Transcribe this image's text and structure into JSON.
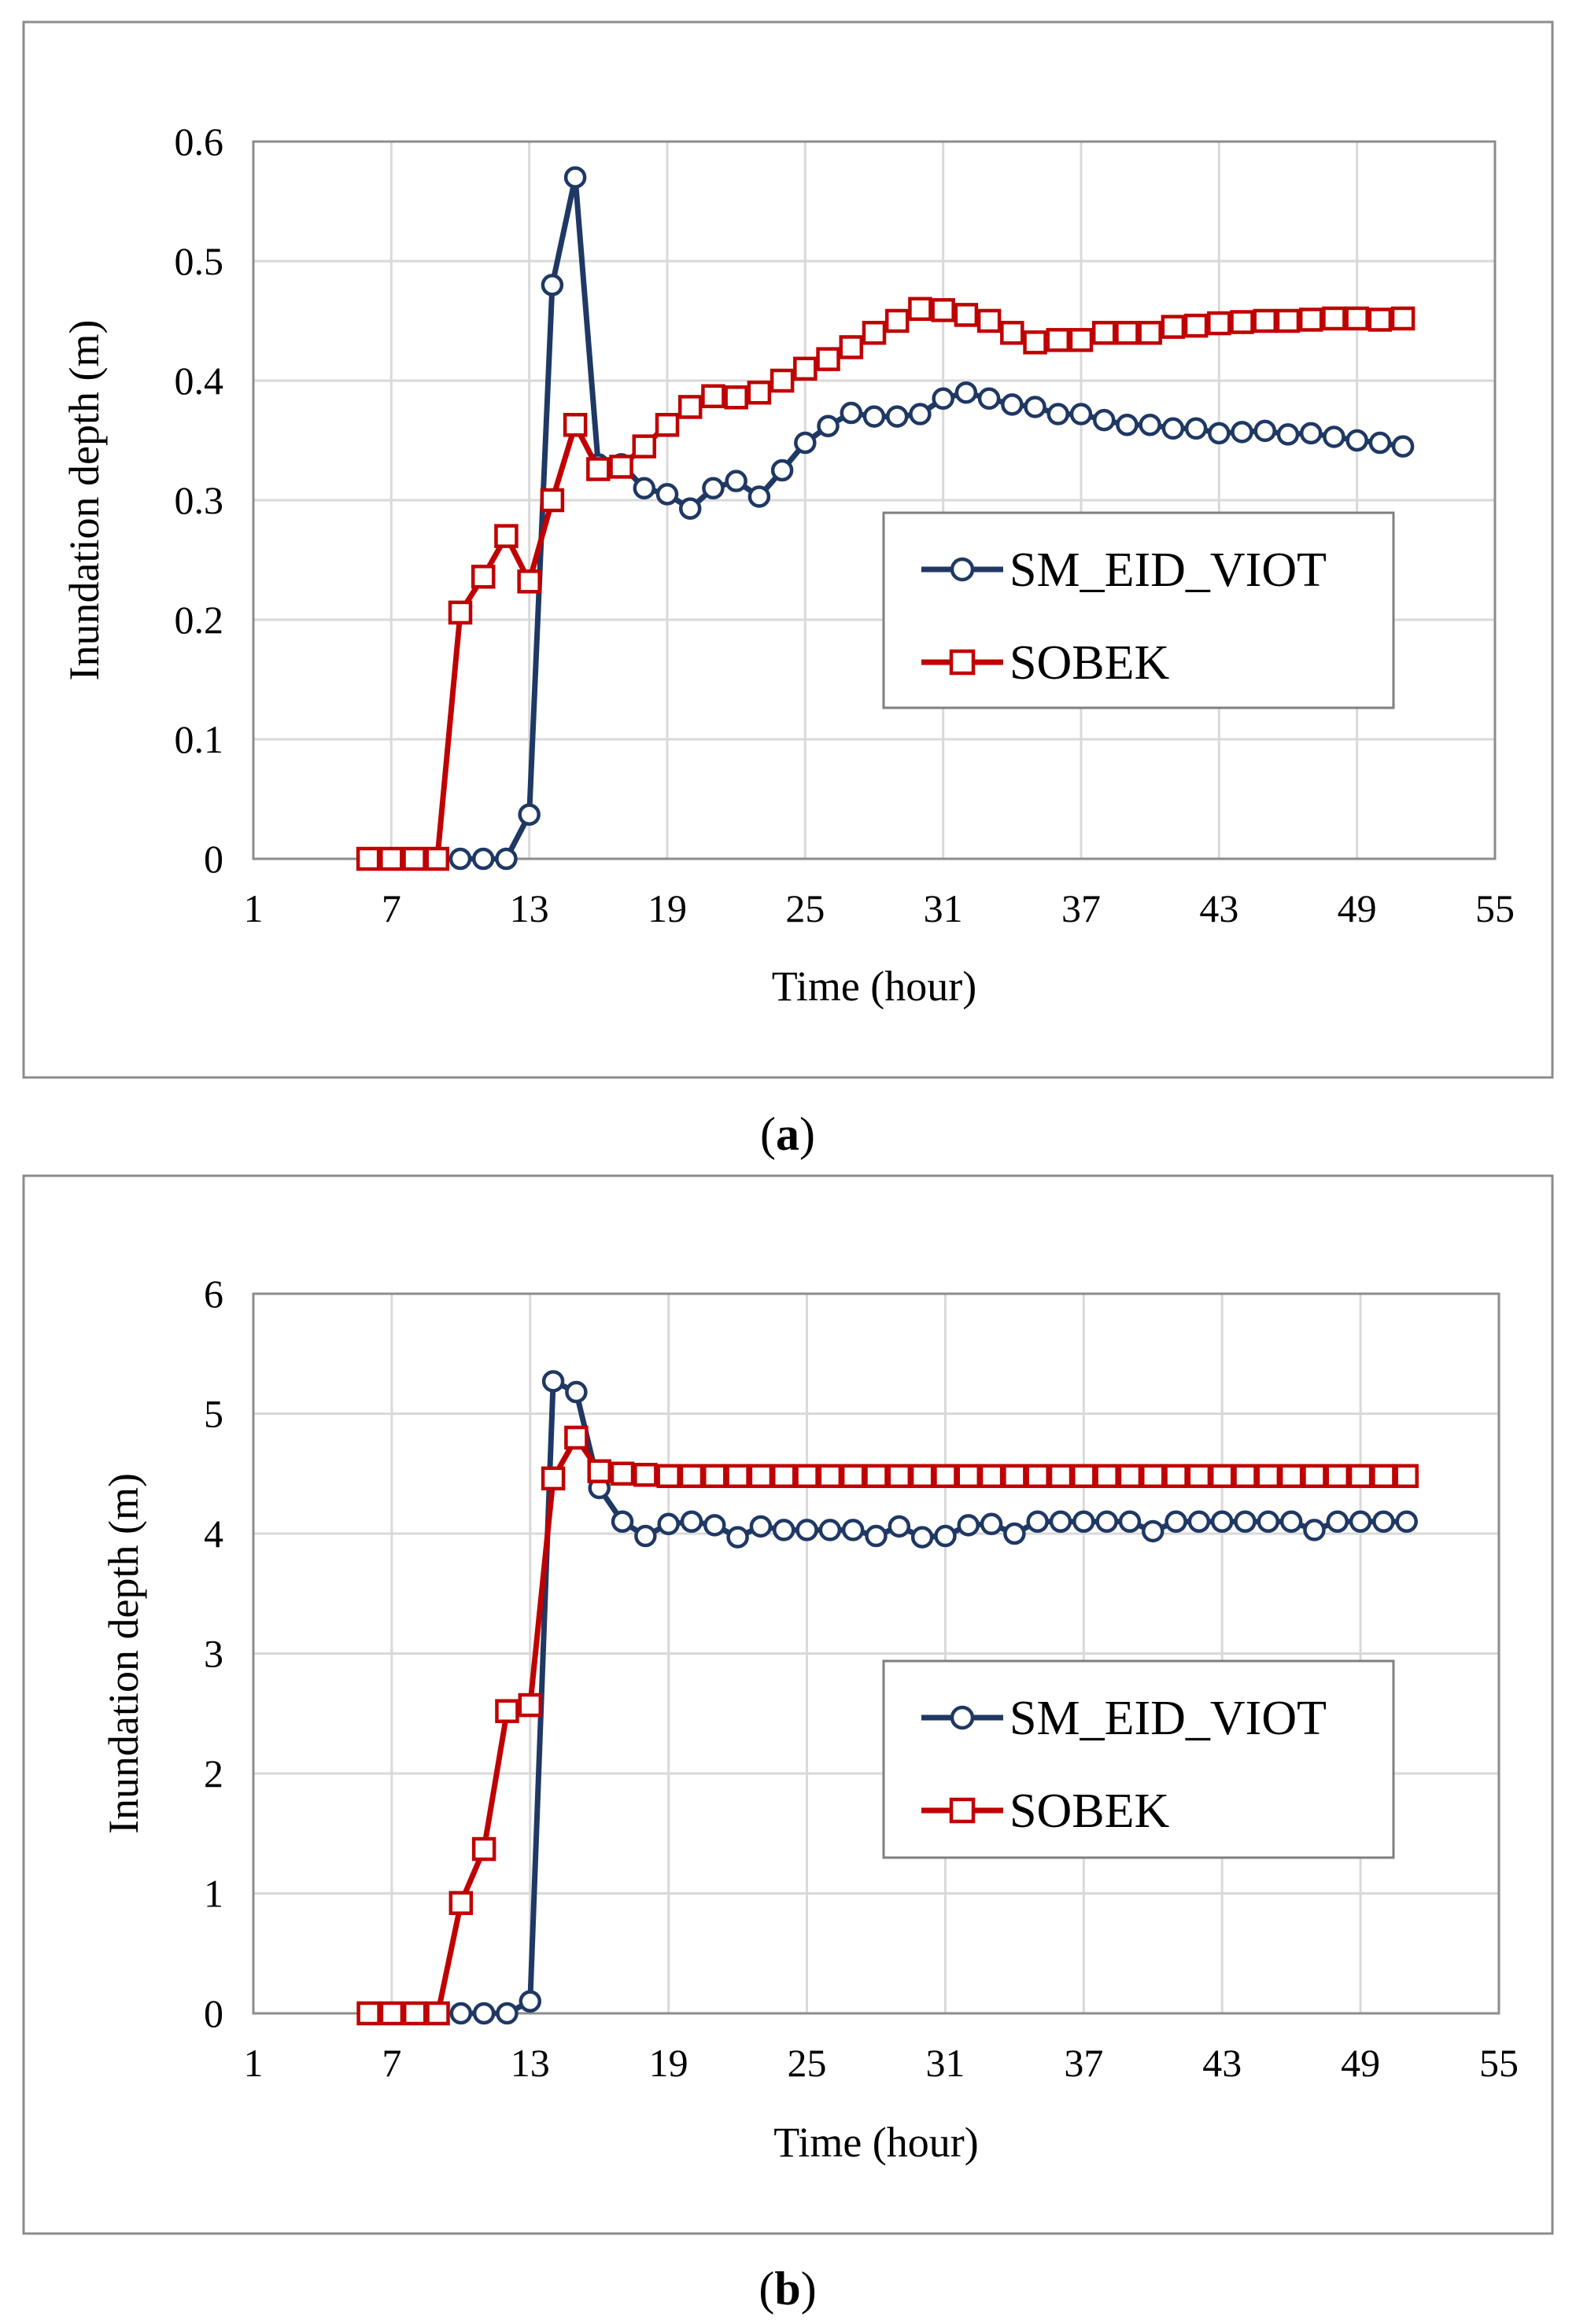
{
  "chart_data": [
    {
      "type": "line",
      "panel_label": "a",
      "xlabel": "Time (hour)",
      "ylabel": "Inundation depth (m)",
      "xlim": [
        1,
        55
      ],
      "ylim": [
        0,
        0.6
      ],
      "xticks": [
        "1",
        "7",
        "13",
        "19",
        "25",
        "31",
        "37",
        "43",
        "49",
        "55"
      ],
      "yticks": [
        "0",
        "0.1",
        "0.2",
        "0.3",
        "0.4",
        "0.5",
        "0.6"
      ],
      "grid": true,
      "legend_position": "right-middle",
      "series": [
        {
          "name": "SM_EID_VIOT",
          "color": "#1f3864",
          "marker": "circle",
          "x": [
            10,
            11,
            12,
            13,
            14,
            15,
            16,
            17,
            18,
            19,
            20,
            21,
            22,
            23,
            24,
            25,
            26,
            27,
            28,
            29,
            30,
            31,
            32,
            33,
            34,
            35,
            36,
            37,
            38,
            39,
            40,
            41,
            42,
            43,
            44,
            45,
            46,
            47,
            48,
            49,
            50,
            51
          ],
          "y": [
            0,
            0,
            0,
            0.037,
            0.48,
            0.57,
            0.33,
            0.33,
            0.31,
            0.305,
            0.293,
            0.31,
            0.316,
            0.303,
            0.325,
            0.348,
            0.362,
            0.373,
            0.37,
            0.37,
            0.372,
            0.385,
            0.39,
            0.385,
            0.38,
            0.378,
            0.372,
            0.372,
            0.367,
            0.363,
            0.363,
            0.36,
            0.36,
            0.356,
            0.357,
            0.358,
            0.355,
            0.356,
            0.353,
            0.35,
            0.348,
            0.345
          ]
        },
        {
          "name": "SOBEK",
          "color": "#c00000",
          "marker": "square",
          "x": [
            6,
            7,
            8,
            9,
            10,
            11,
            12,
            13,
            14,
            15,
            16,
            17,
            18,
            19,
            20,
            21,
            22,
            23,
            24,
            25,
            26,
            27,
            28,
            29,
            30,
            31,
            32,
            33,
            34,
            35,
            36,
            37,
            38,
            39,
            40,
            41,
            42,
            43,
            44,
            45,
            46,
            47,
            48,
            49,
            50,
            51
          ],
          "y": [
            0,
            0,
            0,
            0,
            0.206,
            0.236,
            0.27,
            0.232,
            0.3,
            0.363,
            0.326,
            0.328,
            0.345,
            0.363,
            0.378,
            0.387,
            0.386,
            0.39,
            0.4,
            0.41,
            0.418,
            0.428,
            0.44,
            0.45,
            0.46,
            0.459,
            0.455,
            0.45,
            0.44,
            0.432,
            0.434,
            0.434,
            0.44,
            0.44,
            0.44,
            0.445,
            0.446,
            0.448,
            0.449,
            0.45,
            0.45,
            0.451,
            0.452,
            0.452,
            0.451,
            0.452
          ]
        }
      ]
    },
    {
      "type": "line",
      "panel_label": "b",
      "xlabel": "Time (hour)",
      "ylabel": "Inundation depth (m)",
      "xlim": [
        1,
        55
      ],
      "ylim": [
        0,
        6
      ],
      "xticks": [
        "1",
        "7",
        "13",
        "19",
        "25",
        "31",
        "37",
        "43",
        "49",
        "55"
      ],
      "yticks": [
        "0",
        "1",
        "2",
        "3",
        "4",
        "5",
        "6"
      ],
      "grid": true,
      "legend_position": "right-middle",
      "series": [
        {
          "name": "SM_EID_VIOT",
          "color": "#1f3864",
          "marker": "circle",
          "x": [
            10,
            11,
            12,
            13,
            14,
            15,
            16,
            17,
            18,
            19,
            20,
            21,
            22,
            23,
            24,
            25,
            26,
            27,
            28,
            29,
            30,
            31,
            32,
            33,
            34,
            35,
            36,
            37,
            38,
            39,
            40,
            41,
            42,
            43,
            44,
            45,
            46,
            47,
            48,
            49,
            50,
            51
          ],
          "y": [
            0,
            0,
            0,
            0.1,
            5.27,
            5.18,
            4.38,
            4.1,
            3.98,
            4.08,
            4.1,
            4.07,
            3.97,
            4.06,
            4.03,
            4.03,
            4.03,
            4.03,
            3.98,
            4.06,
            3.97,
            3.98,
            4.07,
            4.08,
            4.0,
            4.1,
            4.1,
            4.1,
            4.1,
            4.1,
            4.02,
            4.1,
            4.1,
            4.1,
            4.1,
            4.1,
            4.1,
            4.03,
            4.1,
            4.1,
            4.1,
            4.1
          ]
        },
        {
          "name": "SOBEK",
          "color": "#c00000",
          "marker": "square",
          "x": [
            6,
            7,
            8,
            9,
            10,
            11,
            12,
            13,
            14,
            15,
            16,
            17,
            18,
            19,
            20,
            21,
            22,
            23,
            24,
            25,
            26,
            27,
            28,
            29,
            30,
            31,
            32,
            33,
            34,
            35,
            36,
            37,
            38,
            39,
            40,
            41,
            42,
            43,
            44,
            45,
            46,
            47,
            48,
            49,
            50,
            51
          ],
          "y": [
            0,
            0,
            0,
            0,
            0.92,
            1.37,
            2.52,
            2.57,
            4.46,
            4.8,
            4.52,
            4.5,
            4.49,
            4.48,
            4.48,
            4.48,
            4.48,
            4.48,
            4.48,
            4.48,
            4.48,
            4.48,
            4.48,
            4.48,
            4.48,
            4.48,
            4.48,
            4.48,
            4.48,
            4.48,
            4.48,
            4.48,
            4.48,
            4.48,
            4.48,
            4.48,
            4.48,
            4.48,
            4.48,
            4.48,
            4.48,
            4.48,
            4.48,
            4.48,
            4.48,
            4.48
          ]
        }
      ]
    }
  ]
}
